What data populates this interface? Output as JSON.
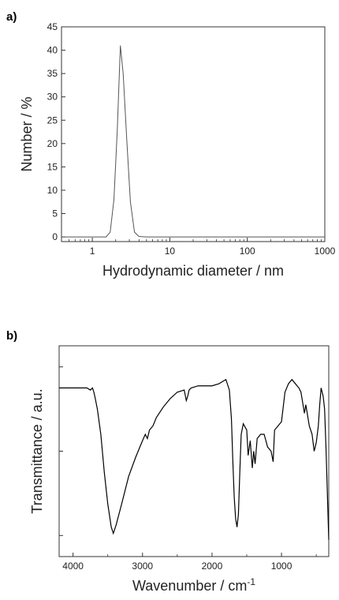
{
  "chart_data": [
    {
      "type": "line",
      "panel_label": "a)",
      "xlabel": "Hydrodynamic diameter / nm",
      "ylabel": "Number / %",
      "xscale": "log",
      "xlim": [
        0.4,
        1000
      ],
      "ylim": [
        -1,
        45
      ],
      "xticks": [
        1,
        10,
        100,
        1000
      ],
      "xtick_labels": [
        "1",
        "10",
        "100",
        "1000"
      ],
      "yticks": [
        0,
        5,
        10,
        15,
        20,
        25,
        30,
        35,
        40,
        45
      ],
      "ytick_labels": [
        "0",
        "5",
        "10",
        "15",
        "20",
        "25",
        "30",
        "35",
        "40",
        "45"
      ],
      "grid": false,
      "color": "#555555",
      "x": [
        0.4,
        1.5,
        1.7,
        1.9,
        2.1,
        2.3,
        2.5,
        2.8,
        3.1,
        3.5,
        4.0,
        5.0,
        1000
      ],
      "y": [
        0,
        0,
        1.0,
        8.0,
        23.0,
        41.0,
        35.0,
        20.0,
        7.5,
        1.0,
        0.1,
        0,
        0
      ]
    },
    {
      "type": "line",
      "panel_label": "b)",
      "xlabel": "Wavenumber / cm",
      "xlabel_superscript": "-1",
      "ylabel": "Transmittance / a.u.",
      "xlim": [
        4200,
        320
      ],
      "ylim": [
        0,
        100
      ],
      "xticks": [
        4000,
        3000,
        2000,
        1000
      ],
      "xtick_labels": [
        "4000",
        "3000",
        "2000",
        "1000"
      ],
      "ytick_labels": [],
      "grid": false,
      "color": "#000000",
      "x": [
        4200,
        3900,
        3800,
        3750,
        3720,
        3700,
        3680,
        3650,
        3600,
        3550,
        3500,
        3450,
        3420,
        3380,
        3300,
        3200,
        3100,
        3000,
        2960,
        2930,
        2900,
        2850,
        2800,
        2700,
        2600,
        2500,
        2400,
        2370,
        2350,
        2330,
        2300,
        2200,
        2000,
        1900,
        1850,
        1800,
        1750,
        1720,
        1700,
        1680,
        1660,
        1640,
        1620,
        1600,
        1580,
        1550,
        1500,
        1480,
        1450,
        1420,
        1400,
        1380,
        1350,
        1300,
        1250,
        1200,
        1150,
        1120,
        1100,
        1050,
        1000,
        950,
        900,
        850,
        800,
        750,
        720,
        700,
        670,
        650,
        620,
        600,
        560,
        530,
        500,
        470,
        450,
        430,
        400,
        380,
        360,
        340,
        320
      ],
      "y": [
        80,
        80,
        80,
        79,
        80,
        78,
        75,
        70,
        58,
        40,
        25,
        14,
        11,
        15,
        25,
        38,
        47,
        55,
        58,
        56,
        60,
        62,
        66,
        71,
        75,
        78,
        79,
        74,
        76,
        79,
        80,
        81,
        81,
        82,
        83,
        84,
        79,
        65,
        45,
        28,
        18,
        14,
        20,
        40,
        58,
        63,
        60,
        48,
        55,
        42,
        50,
        44,
        56,
        58,
        58,
        52,
        50,
        45,
        60,
        62,
        64,
        78,
        82,
        84,
        82,
        80,
        78,
        74,
        68,
        72,
        66,
        62,
        58,
        50,
        54,
        62,
        72,
        80,
        76,
        70,
        52,
        30,
        8
      ]
    }
  ]
}
